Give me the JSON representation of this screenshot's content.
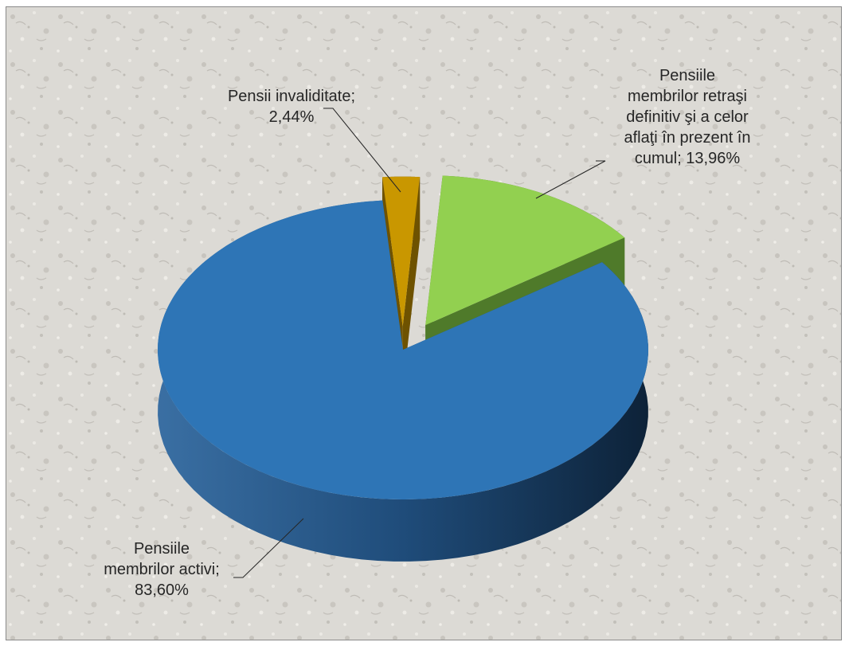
{
  "chart_data": {
    "type": "pie",
    "title": "",
    "style": "3d-exploded",
    "slices": [
      {
        "key": "activi",
        "label_lines": [
          "Pensiile",
          "membrilor activi;",
          "83,60%"
        ],
        "value": 83.6,
        "color": "#2E75B6",
        "side_color": "#1d4e7c"
      },
      {
        "key": "retrasi",
        "label_lines": [
          "Pensiile",
          "membrilor retraşi",
          "definitiv şi a celor",
          "aflaţi în prezent în",
          "cumul; 13,96%"
        ],
        "value": 13.96,
        "color": "#92D050",
        "side_color": "#4f7a2a"
      },
      {
        "key": "invalid",
        "label_lines": [
          "Pensii invaliditate;",
          "2,44%"
        ],
        "value": 2.44,
        "color": "#C99700",
        "side_color": "#6e5200"
      }
    ]
  }
}
